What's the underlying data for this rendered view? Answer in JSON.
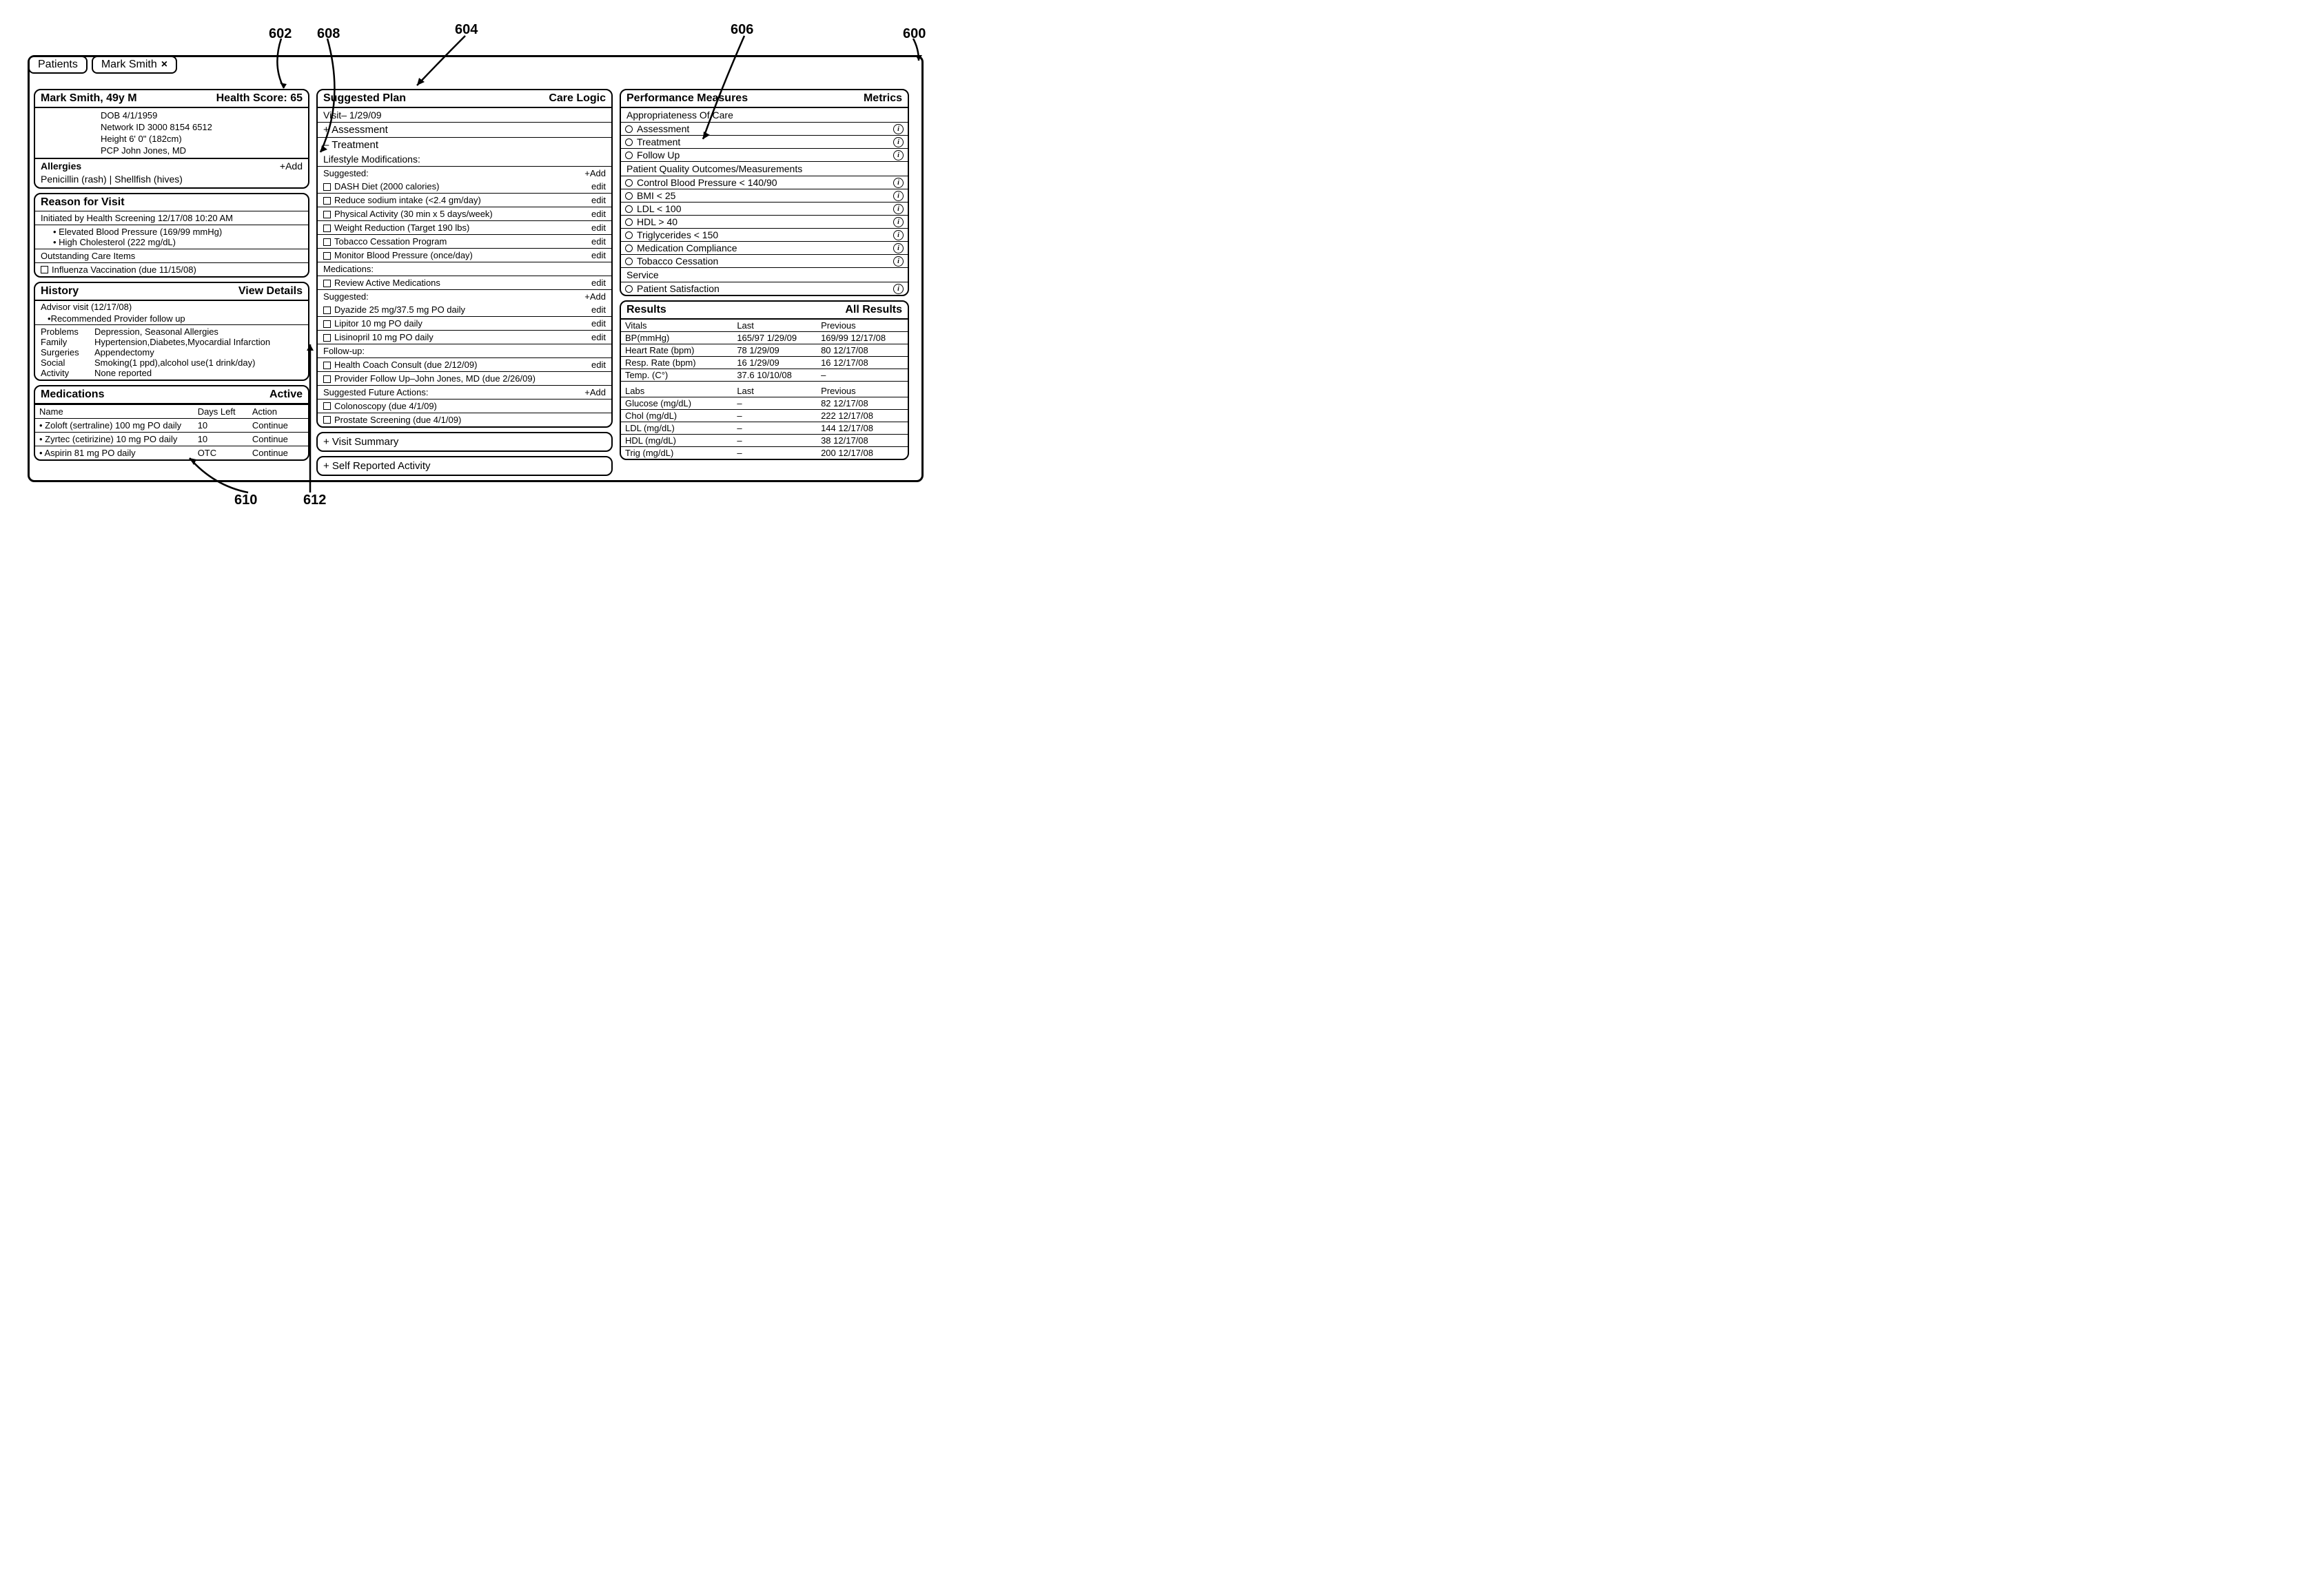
{
  "figure": {
    "labels": {
      "l600": "600",
      "l602": "602",
      "l604": "604",
      "l606": "606",
      "l608": "608",
      "l610": "610",
      "l612": "612"
    }
  },
  "tabs": {
    "patients": "Patients",
    "active_name": "Mark Smith",
    "close_glyph": "×"
  },
  "patient": {
    "title_name": "Mark Smith, 49y M",
    "health_score_label": "Health Score:",
    "health_score_value": "65",
    "dob": "DOB 4/1/1959",
    "network_id": "Network ID 3000 8154 6512",
    "height": "Height 6' 0\" (182cm)",
    "pcp": "PCP John Jones, MD"
  },
  "allergies": {
    "label": "Allergies",
    "add": "+Add",
    "text": "Penicillin (rash) | Shellfish (hives)"
  },
  "reason": {
    "title": "Reason for Visit",
    "initiated": "Initiated by Health Screening 12/17/08 10:20 AM",
    "items": [
      "Elevated Blood Pressure (169/99 mmHg)",
      "High Cholesterol (222 mg/dL)"
    ],
    "outstanding_label": "Outstanding Care Items",
    "outstanding_item": "Influenza Vaccination (due 11/15/08)"
  },
  "history": {
    "title": "History",
    "view_details": "View Details",
    "advisor_line": "Advisor visit (12/17/08)",
    "advisor_sub": "Recommended Provider follow up",
    "problems_k": "Problems",
    "problems_v": "Depression, Seasonal Allergies",
    "family_k": "Family",
    "family_v": "Hypertension,Diabetes,Myocardial Infarction",
    "surgeries_k": "Surgeries",
    "surgeries_v": "Appendectomy",
    "social_k": "Social",
    "social_v": "Smoking(1 ppd),alcohol use(1 drink/day)",
    "activity_k": "Activity",
    "activity_v": "None reported"
  },
  "meds": {
    "title": "Medications",
    "tab": "Active",
    "col_name": "Name",
    "col_days": "Days Left",
    "col_action": "Action",
    "rows": [
      {
        "name": "Zoloft (sertraline) 100 mg PO daily",
        "days": "10",
        "action": "Continue"
      },
      {
        "name": "Zyrtec (cetirizine) 10 mg PO daily",
        "days": "10",
        "action": "Continue"
      },
      {
        "name": "Aspirin 81 mg PO daily",
        "days": "OTC",
        "action": "Continue"
      }
    ]
  },
  "plan": {
    "title": "Suggested Plan",
    "care_logic": "Care Logic",
    "visit": "Visit– 1/29/09",
    "assessment": "+ Assessment",
    "treatment": "– Treatment",
    "lifestyle_label": "Lifestyle Modifications:",
    "suggested_label": "Suggested:",
    "add": "+Add",
    "edit": "edit",
    "lifestyle": [
      "DASH Diet (2000 calories)",
      "Reduce sodium intake (<2.4 gm/day)",
      "Physical Activity (30 min x 5 days/week)",
      "Weight Reduction (Target 190 lbs)",
      "Tobacco Cessation Program",
      "Monitor Blood Pressure (once/day)"
    ],
    "medications_label": "Medications:",
    "review_meds": "Review Active Medications",
    "med_suggested": [
      "Dyazide 25 mg/37.5 mg PO daily",
      "Lipitor 10 mg PO daily",
      "Lisinopril 10 mg PO daily"
    ],
    "followup_label": "Follow-up:",
    "followup_items": [
      "Health Coach Consult (due 2/12/09)",
      "Provider Follow Up–John Jones, MD (due 2/26/09)"
    ],
    "future_label": "Suggested Future Actions:",
    "future_items": [
      "Colonoscopy (due 4/1/09)",
      "Prostate Screening (due 4/1/09)"
    ],
    "visit_summary": "+ Visit Summary",
    "self_reported": "+ Self Reported Activity"
  },
  "perf": {
    "title": "Performance Measures",
    "metrics": "Metrics",
    "appropriateness": "Appropriateness Of Care",
    "appr_items": [
      "Assessment",
      "Treatment",
      "Follow Up"
    ],
    "quality": "Patient Quality Outcomes/Measurements",
    "quality_items": [
      "Control Blood Pressure < 140/90",
      "BMI < 25",
      "LDL < 100",
      "HDL > 40",
      "Triglycerides < 150",
      "Medication Compliance",
      "Tobacco Cessation"
    ],
    "service": "Service",
    "service_items": [
      "Patient Satisfaction"
    ]
  },
  "results": {
    "title": "Results",
    "all": "All Results",
    "vitals_label": "Vitals",
    "last": "Last",
    "previous": "Previous",
    "vitals": [
      {
        "name": "BP(mmHg)",
        "last": "165/97 1/29/09",
        "prev": "169/99 12/17/08"
      },
      {
        "name": "Heart Rate (bpm)",
        "last": "78 1/29/09",
        "prev": "80 12/17/08"
      },
      {
        "name": "Resp. Rate (bpm)",
        "last": "16 1/29/09",
        "prev": "16 12/17/08"
      },
      {
        "name": "Temp. (C°)",
        "last": "37.6 10/10/08",
        "prev": "–"
      }
    ],
    "labs_label": "Labs",
    "labs": [
      {
        "name": "Glucose (mg/dL)",
        "last": "–",
        "prev": "82 12/17/08"
      },
      {
        "name": "Chol (mg/dL)",
        "last": "–",
        "prev": "222 12/17/08"
      },
      {
        "name": "LDL (mg/dL)",
        "last": "–",
        "prev": "144 12/17/08"
      },
      {
        "name": "HDL (mg/dL)",
        "last": "–",
        "prev": "38 12/17/08"
      },
      {
        "name": "Trig (mg/dL)",
        "last": "–",
        "prev": "200 12/17/08"
      }
    ]
  }
}
